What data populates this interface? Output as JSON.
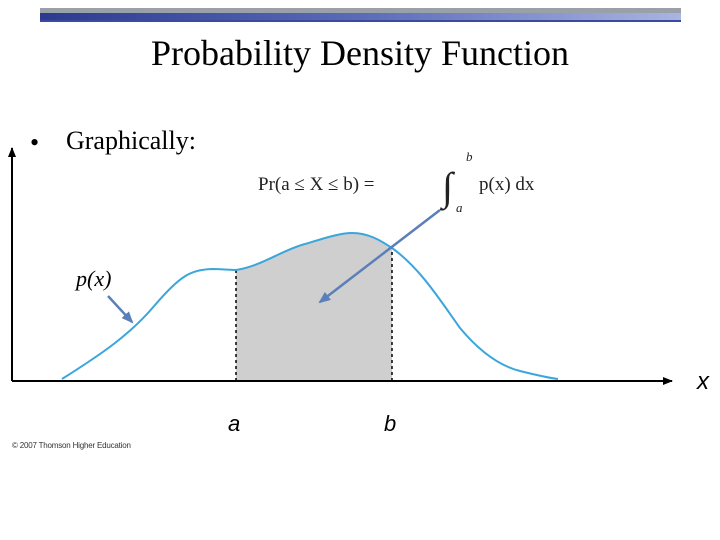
{
  "slide": {
    "title": "Probability Density Function",
    "bullet_symbol": "•",
    "bullet_text": "Graphically:",
    "credit": "© 2007 Thomson Higher Education"
  },
  "diagram": {
    "curve_label": "p(x)",
    "x_axis_label": "x",
    "bound_a_label": "a",
    "bound_b_label": "b",
    "formula_lhs": "Pr(a ≤ X ≤ b) =",
    "formula_upper_limit": "b",
    "formula_lower_limit": "a",
    "formula_integrand": "p(x) dx",
    "colors": {
      "curve": "#3aa6dc",
      "shaded_area": "#cfcfcf",
      "arrow": "#5b7fb8",
      "axis": "#000000"
    }
  }
}
